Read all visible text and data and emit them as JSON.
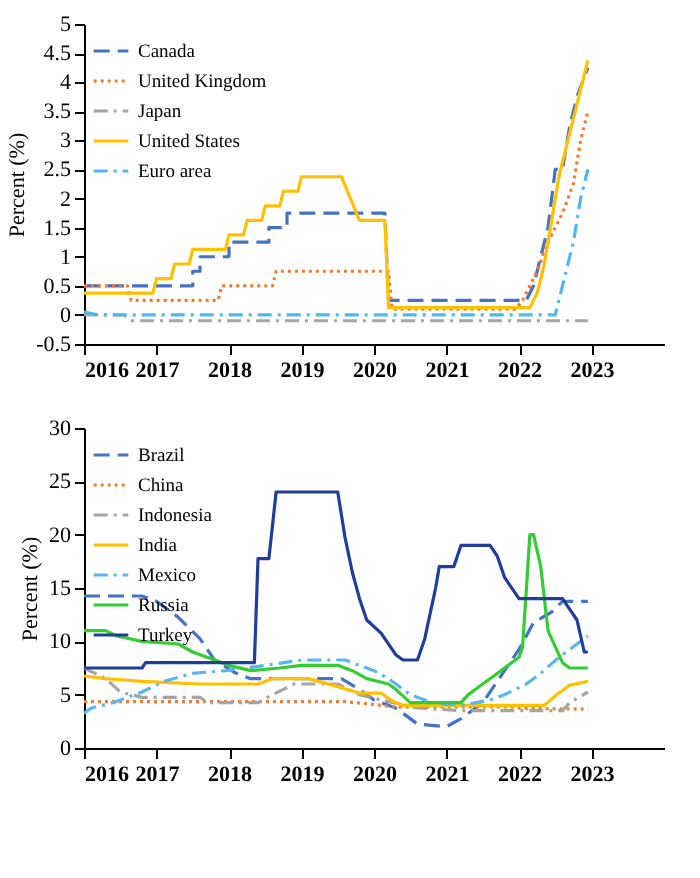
{
  "chart_data": [
    {
      "type": "line",
      "ylabel": "Percent (%)",
      "xlim": [
        2016,
        2024
      ],
      "xticks": [
        2016,
        2017,
        2018,
        2019,
        2020,
        2021,
        2022,
        2023
      ],
      "ylim": [
        -0.5,
        5
      ],
      "yticks": [
        -0.5,
        0,
        0.5,
        1,
        1.5,
        2,
        2.5,
        3,
        3.5,
        4,
        4.5,
        5
      ],
      "grid": false,
      "legend": "top left",
      "marker": "none",
      "series": [
        {
          "name": "Canada",
          "color": "#4472c4",
          "line_style": "dashed",
          "x": [
            2016,
            2017.5,
            2017.5,
            2017.6,
            2017.6,
            2017.7,
            2018.0,
            2018.0,
            2018.55,
            2018.55,
            2018.8,
            2018.8,
            2020.15,
            2020.2,
            2022.1,
            2022.2,
            2022.3,
            2022.4,
            2022.5,
            2022.6,
            2022.7,
            2022.8,
            2022.95
          ],
          "values": [
            0.5,
            0.5,
            0.75,
            0.75,
            1.0,
            1.0,
            1.0,
            1.25,
            1.25,
            1.5,
            1.5,
            1.75,
            1.75,
            0.25,
            0.25,
            0.5,
            1.0,
            1.5,
            2.5,
            2.5,
            3.25,
            3.75,
            4.25
          ]
        },
        {
          "name": "United Kingdom",
          "color": "#ed7d31",
          "line_style": "dotted",
          "x": [
            2016,
            2016.6,
            2016.65,
            2017.85,
            2017.9,
            2018.6,
            2018.65,
            2020.2,
            2020.25,
            2021.95,
            2022.05,
            2022.15,
            2022.25,
            2022.4,
            2022.6,
            2022.75,
            2022.85,
            2022.95
          ],
          "values": [
            0.5,
            0.5,
            0.25,
            0.25,
            0.5,
            0.5,
            0.75,
            0.75,
            0.1,
            0.1,
            0.25,
            0.5,
            0.75,
            1.25,
            1.75,
            2.25,
            3.0,
            3.5
          ]
        },
        {
          "name": "Japan",
          "color": "#a5a5a5",
          "line_style": "dashdot",
          "x": [
            2016,
            2016.55,
            2016.65,
            2022.95
          ],
          "values": [
            0,
            0,
            -0.1,
            -0.1
          ]
        },
        {
          "name": "United States",
          "color": "#ffc000",
          "line_style": "solid",
          "x": [
            2016,
            2016.95,
            2017.0,
            2017.2,
            2017.25,
            2017.45,
            2017.5,
            2017.95,
            2018.0,
            2018.2,
            2018.25,
            2018.45,
            2018.5,
            2018.7,
            2018.75,
            2018.95,
            2019.0,
            2019.55,
            2019.8,
            2020.15,
            2020.2,
            2022.15,
            2022.25,
            2022.35,
            2022.45,
            2022.55,
            2022.7,
            2022.85,
            2022.95
          ],
          "values": [
            0.375,
            0.375,
            0.625,
            0.625,
            0.875,
            0.875,
            1.125,
            1.125,
            1.375,
            1.375,
            1.625,
            1.625,
            1.875,
            1.875,
            2.125,
            2.125,
            2.375,
            2.375,
            1.625,
            1.625,
            0.125,
            0.125,
            0.375,
            0.875,
            1.625,
            2.375,
            3.125,
            3.875,
            4.375
          ]
        },
        {
          "name": "Euro area",
          "color": "#4db8f0",
          "line_style": "dashdot",
          "x": [
            2016,
            2016.2,
            2022.5,
            2022.6,
            2022.75,
            2022.85,
            2022.95
          ],
          "values": [
            0.05,
            0,
            0,
            0.5,
            1.25,
            2.0,
            2.5
          ]
        }
      ]
    },
    {
      "type": "line",
      "ylabel": "Percent (%)",
      "xlim": [
        2016,
        2024
      ],
      "xticks": [
        2016,
        2017,
        2018,
        2019,
        2020,
        2021,
        2022,
        2023
      ],
      "ylim": [
        0,
        30
      ],
      "yticks": [
        0,
        5,
        10,
        15,
        20,
        25,
        30
      ],
      "grid": false,
      "legend": "top left",
      "marker": "none",
      "series": [
        {
          "name": "Brazil",
          "color": "#4472c4",
          "line_style": "dashed",
          "x": [
            2016,
            2016.8,
            2017.0,
            2017.3,
            2017.6,
            2017.8,
            2018.1,
            2018.3,
            2019.55,
            2019.8,
            2020.0,
            2020.3,
            2020.6,
            2021.0,
            2021.2,
            2021.5,
            2021.7,
            2022.0,
            2022.2,
            2022.45,
            2022.6,
            2022.95
          ],
          "values": [
            14.25,
            14.25,
            13.75,
            12.25,
            10.25,
            8.25,
            7.0,
            6.5,
            6.5,
            5.5,
            4.5,
            3.75,
            2.25,
            2.0,
            2.75,
            4.25,
            6.25,
            9.25,
            11.75,
            12.75,
            13.75,
            13.75
          ]
        },
        {
          "name": "China",
          "color": "#ed7d31",
          "line_style": "dotted",
          "x": [
            2016,
            2019.6,
            2019.9,
            2020.3,
            2021.9,
            2022.1,
            2022.95
          ],
          "values": [
            4.35,
            4.35,
            4.15,
            3.85,
            3.85,
            3.7,
            3.65
          ]
        },
        {
          "name": "Indonesia",
          "color": "#a5a5a5",
          "line_style": "dashdot",
          "x": [
            2016,
            2016.3,
            2016.5,
            2016.8,
            2017.6,
            2017.7,
            2018.4,
            2018.6,
            2018.9,
            2019.5,
            2019.8,
            2020.1,
            2020.6,
            2021.2,
            2022.6,
            2022.7,
            2022.95
          ],
          "values": [
            7.5,
            6.5,
            5.25,
            4.75,
            4.75,
            4.25,
            4.25,
            5.0,
            6.0,
            6.0,
            5.0,
            4.5,
            3.75,
            3.5,
            3.5,
            4.25,
            5.25
          ]
        },
        {
          "name": "India",
          "color": "#ffc000",
          "line_style": "solid",
          "x": [
            2016,
            2016.3,
            2016.8,
            2017.6,
            2018.4,
            2018.6,
            2019.1,
            2019.5,
            2019.8,
            2020.1,
            2020.25,
            2020.4,
            2022.35,
            2022.5,
            2022.7,
            2022.95
          ],
          "values": [
            6.75,
            6.5,
            6.25,
            6.0,
            6.0,
            6.5,
            6.5,
            5.75,
            5.15,
            5.15,
            4.4,
            4.0,
            4.0,
            4.9,
            5.9,
            6.25
          ]
        },
        {
          "name": "Mexico",
          "color": "#5bb5f0",
          "line_style": "dashdot",
          "x": [
            2016,
            2016.1,
            2016.4,
            2016.8,
            2017.1,
            2017.5,
            2017.95,
            2018.5,
            2019.0,
            2019.6,
            2019.8,
            2020.0,
            2020.2,
            2020.5,
            2020.8,
            2021.2,
            2021.6,
            2021.8,
            2022.1,
            2022.3,
            2022.55,
            2022.7,
            2022.95
          ],
          "values": [
            3.25,
            3.75,
            4.25,
            5.25,
            6.25,
            7.0,
            7.25,
            7.75,
            8.25,
            8.25,
            7.75,
            7.25,
            6.5,
            5.0,
            4.25,
            4.0,
            4.5,
            5.0,
            6.0,
            7.0,
            8.5,
            9.25,
            10.5
          ]
        },
        {
          "name": "Russia",
          "color": "#33cc33",
          "line_style": "solid",
          "x": [
            2016,
            2016.3,
            2016.45,
            2016.8,
            2017.3,
            2017.5,
            2017.8,
            2018.0,
            2018.3,
            2018.7,
            2019.0,
            2019.5,
            2019.7,
            2019.9,
            2020.2,
            2020.3,
            2020.5,
            2021.2,
            2021.3,
            2021.4,
            2021.6,
            2021.8,
            2022.0,
            2022.05,
            2022.15,
            2022.2,
            2022.3,
            2022.4,
            2022.5,
            2022.6,
            2022.7,
            2022.95
          ],
          "values": [
            11.0,
            11.0,
            10.5,
            10.0,
            9.75,
            9.0,
            8.25,
            7.75,
            7.25,
            7.5,
            7.75,
            7.75,
            7.25,
            6.5,
            6.0,
            5.5,
            4.25,
            4.25,
            5.0,
            5.5,
            6.5,
            7.5,
            8.5,
            9.5,
            20,
            20,
            17,
            11,
            9.5,
            8,
            7.5,
            7.5
          ]
        },
        {
          "name": "Turkey",
          "color": "#1f3d99",
          "line_style": "solid",
          "x": [
            2016,
            2016.8,
            2016.85,
            2018.35,
            2018.4,
            2018.55,
            2018.65,
            2019.5,
            2019.6,
            2019.7,
            2019.8,
            2019.9,
            2020.1,
            2020.3,
            2020.4,
            2020.6,
            2020.7,
            2020.85,
            2020.9,
            2021.1,
            2021.2,
            2021.6,
            2021.7,
            2021.8,
            2022.0,
            2022.6,
            2022.7,
            2022.8,
            2022.85,
            2022.9,
            2022.95
          ],
          "values": [
            7.5,
            7.5,
            8.0,
            8.0,
            17.75,
            17.75,
            24,
            24,
            19.75,
            16.5,
            14,
            12,
            10.75,
            8.75,
            8.25,
            8.25,
            10.25,
            15,
            17,
            17,
            19,
            19,
            18,
            16,
            14,
            14,
            13,
            12,
            10.5,
            9,
            9
          ]
        }
      ]
    }
  ]
}
